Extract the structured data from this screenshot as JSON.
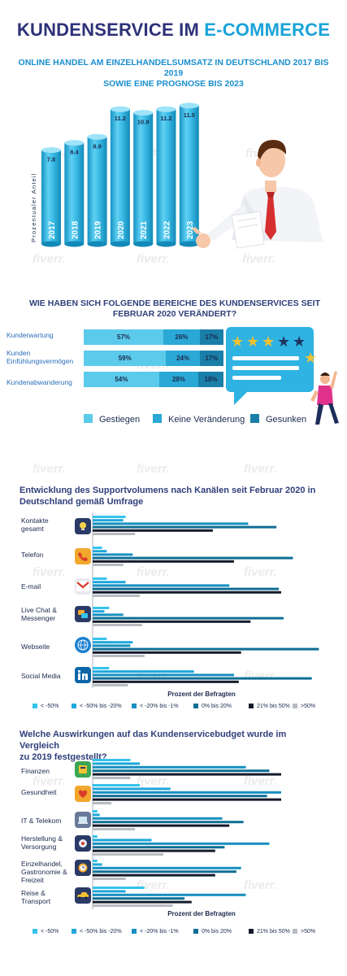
{
  "title_part1": "KUNDENSERVICE IM ",
  "title_part2": "E-COMMERCE",
  "section1": {
    "subtitle_line1": "ONLINE HANDEL AM EINZELHANDELSUMSATZ IN DEUTSCHLAND 2017 BIS 2019",
    "subtitle_line2": "SOWIE EINE PROGNOSE BIS 2023"
  },
  "section2": {
    "heading_line1": "WIE HABEN SICH FOLGENDE BEREICHE DES KUNDENSERVICES SEIT",
    "heading_line2": "FEBRUAR 2020 VERÄNDERT?"
  },
  "section3": {
    "heading_line1": "Entwicklung des Supportvolumens nach Kanälen seit Februar 2020 in",
    "heading_line2": "Deutschland gemäß Umfrage"
  },
  "section4": {
    "heading_line1": "Welche Auswirkungen auf das Kundenservicebudget wurde im Vergleich",
    "heading_line2": "zu 2019 festgestellt?"
  },
  "colors": {
    "navy": "#2d3278",
    "accent": "#1aa3d8",
    "cyl_light": "#5fd0f2",
    "cyl_dark": "#1592c4",
    "s2_c1": "#5ccaeb",
    "s2_c2": "#2aa8d6",
    "s2_c3": "#1a7fa8",
    "l1": "#35c3ec",
    "l2": "#1ea7db",
    "l3": "#178fc0",
    "l4": "#0f6f95",
    "l5": "#141a2a",
    "l6": "#b8bcc1"
  },
  "watermark": "fiverr.",
  "chart_data": [
    {
      "type": "bar",
      "ylabel": "Prozentualer Anteil",
      "categories": [
        "2017",
        "2018",
        "2019",
        "2020",
        "2021",
        "2022",
        "2023"
      ],
      "values": [
        7.8,
        8.4,
        8.9,
        11.2,
        10.9,
        11.2,
        11.5
      ],
      "value_labels": [
        "7.8",
        "8.4",
        "8.9",
        "11.2",
        "10.9",
        "11.2",
        "11.5"
      ]
    },
    {
      "type": "bar",
      "stacked": true,
      "orientation": "horizontal",
      "categories": [
        "Kunderwartung",
        "Kunden Einfühlungsvermögen",
        "Kundenabwanderung"
      ],
      "series": [
        {
          "name": "Gestiegen",
          "values": [
            57,
            59,
            54
          ],
          "labels": [
            "57%",
            "59%",
            "54%"
          ]
        },
        {
          "name": "Keine Veränderung",
          "values": [
            26,
            24,
            28
          ],
          "labels": [
            "26%",
            "24%",
            "28%"
          ]
        },
        {
          "name": "Gesunken",
          "values": [
            17,
            17,
            18
          ],
          "labels": [
            "17%",
            "17%",
            "18%"
          ]
        }
      ]
    },
    {
      "type": "bar",
      "orientation": "horizontal",
      "xlabel": "Prozent der Befragten",
      "categories": [
        "Kontakte gesamt",
        "Telefon",
        "E-mail",
        "Live Chat & Messenger",
        "Webseite",
        "Social Media"
      ],
      "series": [
        {
          "name": "< -50%",
          "values": [
            14,
            4,
            6,
            7,
            6,
            7
          ]
        },
        {
          "name": "< -50% bis -20%",
          "values": [
            13,
            6,
            14,
            5,
            17,
            43
          ]
        },
        {
          "name": "< -20% bis -1%",
          "values": [
            66,
            17,
            58,
            13,
            16,
            60
          ]
        },
        {
          "name": "0% bis 20%",
          "values": [
            78,
            85,
            79,
            81,
            96,
            93
          ]
        },
        {
          "name": "21% bis 50%",
          "values": [
            51,
            60,
            80,
            67,
            63,
            62
          ]
        },
        {
          "name": ">50%",
          "values": [
            18,
            13,
            20,
            21,
            22,
            15
          ]
        }
      ]
    },
    {
      "type": "bar",
      "orientation": "horizontal",
      "xlabel": "Prozent der Befragten",
      "categories": [
        "Finanzen",
        "Gesundheit",
        "IT & Telekom",
        "Herstellung & Versorgung",
        "Einzelhandel, Gastronomie & Freizeit",
        "Reise & Transport"
      ],
      "series": [
        {
          "name": "< -50%",
          "values": [
            16,
            20,
            2,
            2,
            2,
            22
          ]
        },
        {
          "name": "< -50% bis -20%",
          "values": [
            20,
            33,
            3,
            25,
            4,
            14
          ]
        },
        {
          "name": "< -20% bis -1%",
          "values": [
            65,
            80,
            55,
            75,
            63,
            65
          ]
        },
        {
          "name": "0% bis 20%",
          "values": [
            75,
            74,
            64,
            56,
            61,
            39
          ]
        },
        {
          "name": "21% bis 50%",
          "values": [
            80,
            80,
            58,
            52,
            52,
            42
          ]
        },
        {
          "name": ">50%",
          "values": [
            16,
            8,
            18,
            30,
            14,
            34
          ]
        }
      ]
    }
  ]
}
